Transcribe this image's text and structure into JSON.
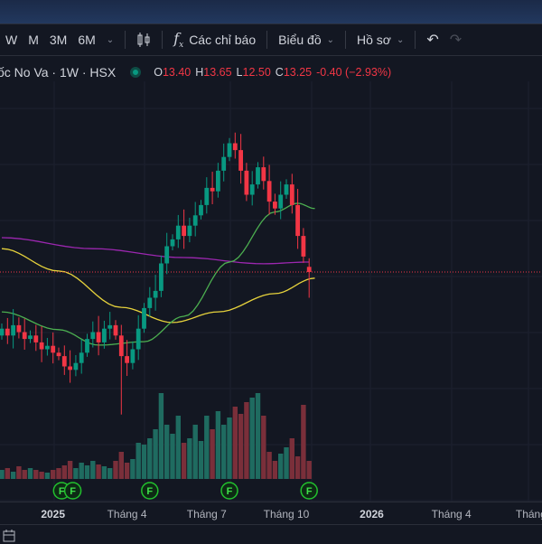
{
  "toolbar": {
    "intervals": [
      "W",
      "M",
      "3M",
      "6M"
    ],
    "candle_icon": "candles-icon",
    "indicators_label": "Các chỉ báo",
    "chart_label": "Biểu đồ",
    "profile_label": "Hồ sơ"
  },
  "legend": {
    "symbol": "ốc No Va · 1W · HSX",
    "o_label": "O",
    "o": "13.40",
    "h_label": "H",
    "h": "13.65",
    "l_label": "L",
    "l": "12.50",
    "c_label": "C",
    "c": "13.25",
    "change": "-0.40 (−2.93%)"
  },
  "colors": {
    "up": "#089981",
    "down": "#f23645",
    "ma_purple": "#9c27b0",
    "ma_yellow": "#e6d23c",
    "ma_green": "#4caf50",
    "bg": "#131722"
  },
  "chart_data": {
    "type": "candlestick",
    "closes": [
      11.6,
      11.4,
      11.7,
      11.5,
      11.3,
      11.4,
      11.2,
      11.0,
      11.1,
      10.9,
      10.8,
      10.5,
      10.4,
      10.6,
      10.9,
      11.3,
      11.5,
      11.2,
      11.6,
      11.7,
      11.4,
      10.8,
      10.6,
      11.0,
      11.6,
      12.2,
      12.5,
      12.7,
      13.5,
      14.0,
      14.2,
      14.6,
      14.3,
      14.6,
      14.9,
      15.2,
      15.7,
      15.6,
      16.2,
      16.6,
      17.0,
      16.8,
      16.2,
      15.5,
      15.8,
      16.3,
      15.9,
      15.3,
      15.1,
      15.5,
      15.8,
      15.2,
      14.3,
      13.7,
      13.25
    ],
    "first_open": 11.4,
    "last": {
      "open": 13.4,
      "high": 13.65,
      "low": 12.5,
      "close": 13.25
    },
    "volume": [
      0.1,
      0.12,
      0.08,
      0.14,
      0.1,
      0.12,
      0.1,
      0.08,
      0.07,
      0.1,
      0.12,
      0.15,
      0.2,
      0.12,
      0.18,
      0.15,
      0.2,
      0.16,
      0.14,
      0.12,
      0.2,
      0.3,
      0.18,
      0.22,
      0.4,
      0.38,
      0.45,
      0.55,
      0.95,
      0.6,
      0.5,
      0.7,
      0.4,
      0.45,
      0.6,
      0.42,
      0.7,
      0.55,
      0.75,
      0.6,
      0.68,
      0.8,
      0.72,
      0.85,
      0.9,
      0.95,
      0.7,
      0.3,
      0.2,
      0.28,
      0.35,
      0.45,
      0.25,
      0.82,
      0.2
    ],
    "ma_purple": [
      [
        0,
        14.25
      ],
      [
        16,
        13.93
      ],
      [
        32,
        13.67
      ],
      [
        46,
        13.49
      ],
      [
        54,
        13.54
      ]
    ],
    "ma_yellow": [
      [
        0,
        13.93
      ],
      [
        10,
        13.28
      ],
      [
        21,
        12.22
      ],
      [
        30,
        11.78
      ],
      [
        38,
        12.09
      ],
      [
        48,
        12.62
      ],
      [
        55,
        13.07
      ]
    ],
    "ma_green": [
      [
        0,
        12.09
      ],
      [
        10,
        11.57
      ],
      [
        17,
        11.12
      ],
      [
        25,
        11.22
      ],
      [
        32,
        11.96
      ],
      [
        40,
        13.54
      ],
      [
        48,
        15.0
      ],
      [
        52,
        15.25
      ],
      [
        55,
        15.1
      ]
    ],
    "earnings_markers": [
      {
        "index": 11,
        "label": "F"
      },
      {
        "index": 12,
        "label": "F"
      },
      {
        "index": 26,
        "label": "F"
      },
      {
        "index": 40,
        "label": "F"
      },
      {
        "index": 54,
        "label": "F"
      }
    ],
    "x_ticks": [
      {
        "label": "2025",
        "year": true,
        "index": 9
      },
      {
        "label": "Tháng 4",
        "index": 22
      },
      {
        "label": "Tháng 7",
        "index": 36
      },
      {
        "label": "Tháng 10",
        "index": 50
      },
      {
        "label": "2026",
        "year": true,
        "index": 65
      },
      {
        "label": "Tháng 4",
        "index": 79
      },
      {
        "label": "Tháng",
        "index": 93
      }
    ]
  }
}
